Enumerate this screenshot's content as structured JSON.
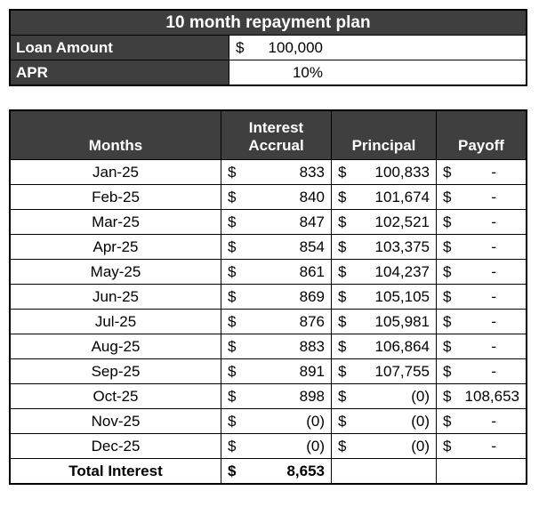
{
  "top": {
    "title": "10 month repayment plan",
    "loan_amount_label": "Loan Amount",
    "loan_amount_symbol": "$",
    "loan_amount_value": "100,000",
    "apr_label": "APR",
    "apr_value": "10%"
  },
  "table": {
    "headers": [
      "Months",
      "Interest Accrual",
      "Principal",
      "Payoff"
    ],
    "currency_symbol": "$",
    "rows": [
      {
        "month": "Jan-25",
        "interest": "833",
        "principal": "100,833",
        "payoff": "-"
      },
      {
        "month": "Feb-25",
        "interest": "840",
        "principal": "101,674",
        "payoff": "-"
      },
      {
        "month": "Mar-25",
        "interest": "847",
        "principal": "102,521",
        "payoff": "-"
      },
      {
        "month": "Apr-25",
        "interest": "854",
        "principal": "103,375",
        "payoff": "-"
      },
      {
        "month": "May-25",
        "interest": "861",
        "principal": "104,237",
        "payoff": "-"
      },
      {
        "month": "Jun-25",
        "interest": "869",
        "principal": "105,105",
        "payoff": "-"
      },
      {
        "month": "Jul-25",
        "interest": "876",
        "principal": "105,981",
        "payoff": "-"
      },
      {
        "month": "Aug-25",
        "interest": "883",
        "principal": "106,864",
        "payoff": "-"
      },
      {
        "month": "Sep-25",
        "interest": "891",
        "principal": "107,755",
        "payoff": "-"
      },
      {
        "month": "Oct-25",
        "interest": "898",
        "principal": "(0)",
        "payoff": "108,653"
      },
      {
        "month": "Nov-25",
        "interest": "(0)",
        "principal": "(0)",
        "payoff": "-"
      },
      {
        "month": "Dec-25",
        "interest": "(0)",
        "principal": "(0)",
        "payoff": "-"
      }
    ],
    "total_label": "Total Interest",
    "total_value": "8,653"
  },
  "colors": {
    "header_bg": "#3f3f3f",
    "header_text": "#ffffff",
    "cell_bg": "#ffffff",
    "border": "#000000"
  }
}
